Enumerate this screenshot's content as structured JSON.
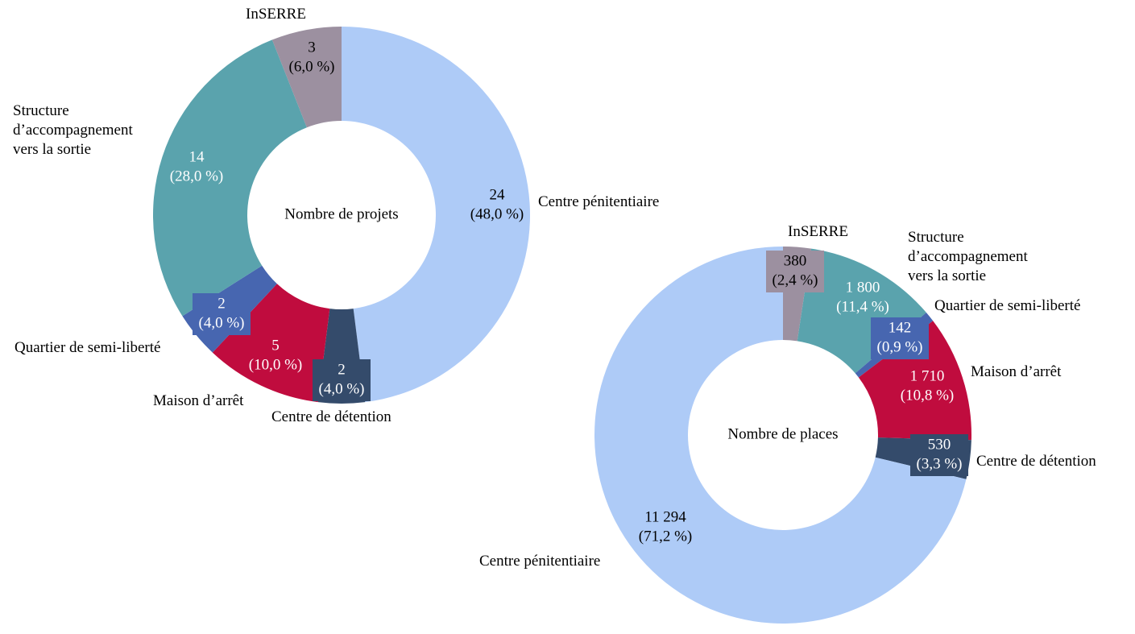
{
  "chart_data": [
    {
      "type": "pie",
      "title": "Nombre de projets",
      "categories": [
        "Centre pénitentiaire",
        "Centre de détention",
        "Maison d’arrêt",
        "Quartier de semi-liberté",
        "Structure d’accompagnement vers la sortie",
        "InSERRE"
      ],
      "values": [
        24,
        2,
        5,
        2,
        14,
        3
      ],
      "shares": [
        48.0,
        4.0,
        10.0,
        4.0,
        28.0,
        6.0
      ],
      "share_labels": [
        "(48,0 %)",
        "(4,0 %)",
        "(10,0 %)",
        "(4,0 %)",
        "(28,0 %)",
        "(6,0 %)"
      ],
      "colors": [
        "#aecbf7",
        "#344b6b",
        "#c00c3e",
        "#4766b0",
        "#5aa3ad",
        "#9c90a0"
      ]
    },
    {
      "type": "pie",
      "title": "Nombre de places",
      "categories": [
        "InSERRE",
        "Structure d’accompagnement vers la sortie",
        "Quartier de semi-liberté",
        "Maison d’arrêt",
        "Centre de détention",
        "Centre pénitentiaire"
      ],
      "values": [
        380,
        1800,
        142,
        1710,
        530,
        11294
      ],
      "value_labels": [
        "380",
        "1 800",
        "142",
        "1 710",
        "530",
        "11 294"
      ],
      "shares": [
        2.4,
        11.4,
        0.9,
        10.8,
        3.3,
        71.2
      ],
      "share_labels": [
        "(2,4 %)",
        "(11,4 %)",
        "(0,9 %)",
        "(10,8 %)",
        "(3,3 %)",
        "(71,2 %)"
      ],
      "colors": [
        "#9c90a0",
        "#5aa3ad",
        "#4766b0",
        "#c00c3e",
        "#344b6b",
        "#aecbf7"
      ]
    }
  ]
}
